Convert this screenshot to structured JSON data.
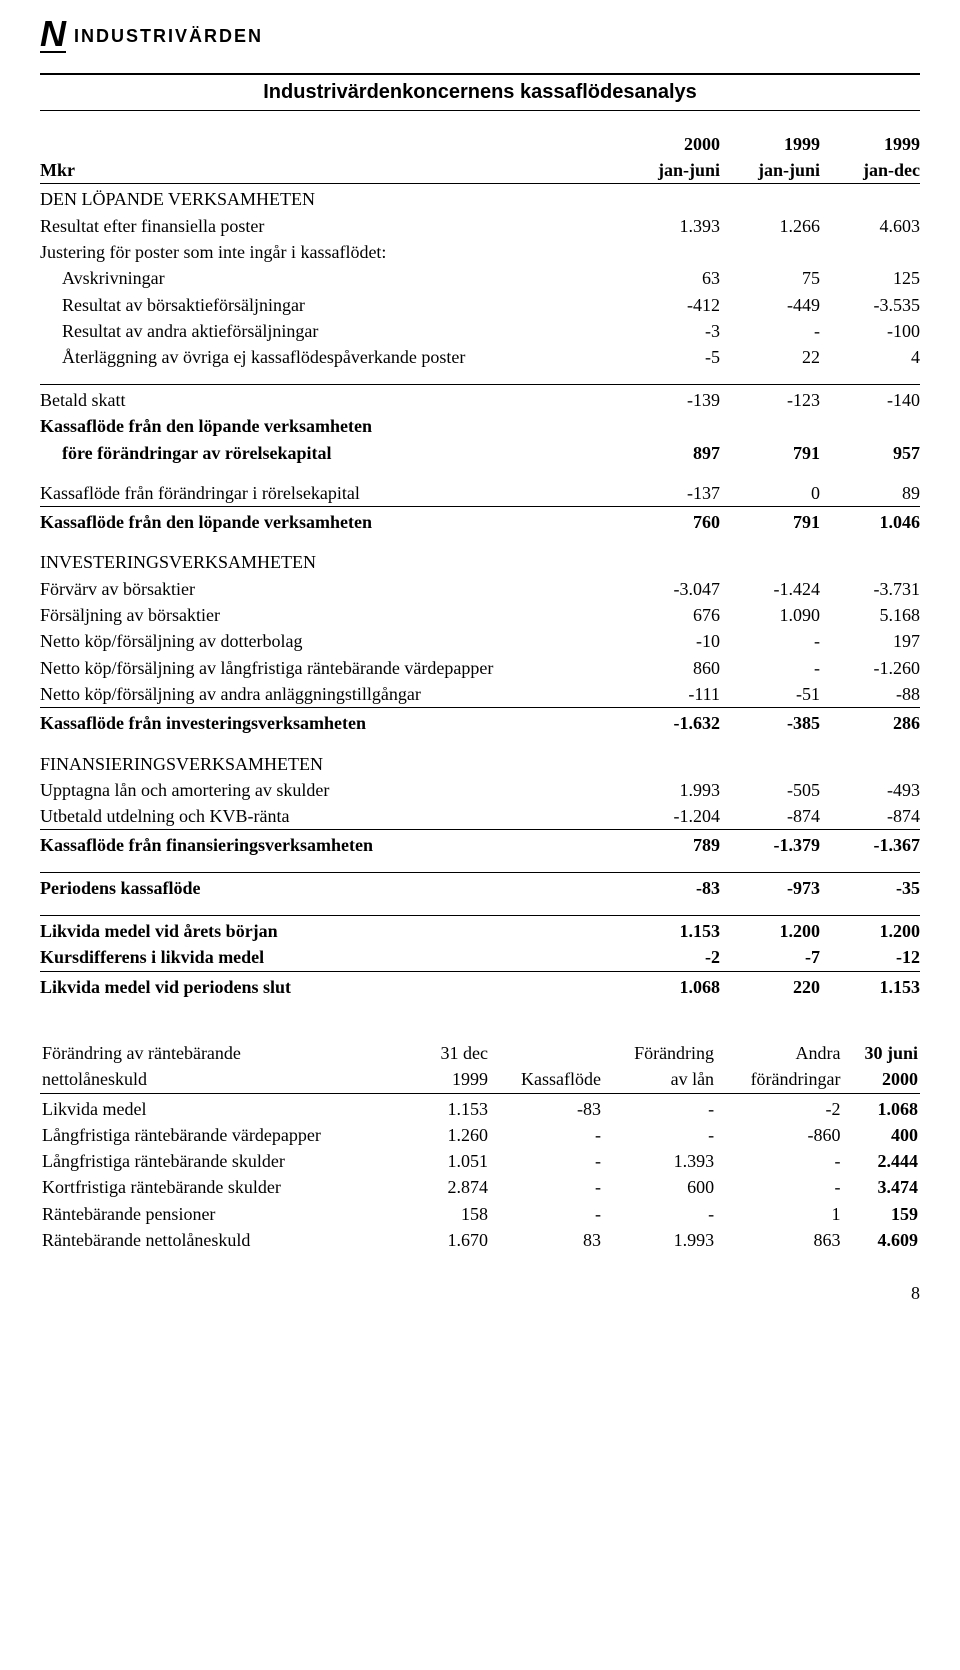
{
  "logo": {
    "symbol": "N",
    "name": "INDUSTRIVÄRDEN"
  },
  "title": "Industrivärdenkoncernens kassaflödesanalys",
  "page_number": "8",
  "table1": {
    "header": {
      "unit": "Mkr",
      "c1t": "2000",
      "c1b": "jan-juni",
      "c2t": "1999",
      "c2b": "jan-juni",
      "c3t": "1999",
      "c3b": "jan-dec"
    },
    "rows": [
      {
        "type": "section",
        "label": "DEN LÖPANDE VERKSAMHETEN"
      },
      {
        "label": "Resultat efter finansiella poster",
        "v": [
          "1.393",
          "1.266",
          "4.603"
        ]
      },
      {
        "label": "Justering för poster som inte ingår i kassaflödet:"
      },
      {
        "label": "Avskrivningar",
        "indent": true,
        "v": [
          "63",
          "75",
          "125"
        ]
      },
      {
        "label": "Resultat av börsaktieförsäljningar",
        "indent": true,
        "v": [
          "-412",
          "-449",
          "-3.535"
        ]
      },
      {
        "label": "Resultat av andra aktieförsäljningar",
        "indent": true,
        "v": [
          "-3",
          "-",
          "-100"
        ]
      },
      {
        "label": "Återläggning av övriga ej kassaflödespåverkande poster",
        "indent": true,
        "v": [
          "-5",
          "22",
          "4"
        ]
      },
      {
        "type": "spacer"
      },
      {
        "label": "Betald skatt",
        "border": true,
        "v": [
          "-139",
          "-123",
          "-140"
        ]
      },
      {
        "label": "Kassaflöde från den löpande verksamheten",
        "bold": true
      },
      {
        "label": "före förändringar av rörelsekapital",
        "bold": true,
        "indent": true,
        "v": [
          "897",
          "791",
          "957"
        ]
      },
      {
        "type": "spacer"
      },
      {
        "label": "Kassaflöde från förändringar i rörelsekapital",
        "v": [
          "-137",
          "0",
          "89"
        ]
      },
      {
        "label": "Kassaflöde från den löpande verksamheten",
        "bold": true,
        "border": true,
        "v": [
          "760",
          "791",
          "1.046"
        ]
      },
      {
        "type": "spacer"
      },
      {
        "type": "section",
        "label": "INVESTERINGSVERKSAMHETEN"
      },
      {
        "label": "Förvärv av börsaktier",
        "v": [
          "-3.047",
          "-1.424",
          "-3.731"
        ]
      },
      {
        "label": "Försäljning av börsaktier",
        "v": [
          "676",
          "1.090",
          "5.168"
        ]
      },
      {
        "label": "Netto köp/försäljning av dotterbolag",
        "v": [
          "-10",
          "-",
          "197"
        ]
      },
      {
        "label": "Netto köp/försäljning av långfristiga räntebärande värdepapper",
        "v": [
          "860",
          "-",
          "-1.260"
        ]
      },
      {
        "label": "Netto köp/försäljning av andra anläggningstillgångar",
        "v": [
          "-111",
          "-51",
          "-88"
        ]
      },
      {
        "label": "Kassaflöde från investeringsverksamheten",
        "bold": true,
        "border": true,
        "v": [
          "-1.632",
          "-385",
          "286"
        ]
      },
      {
        "type": "spacer"
      },
      {
        "type": "section",
        "label": "FINANSIERINGSVERKSAMHETEN"
      },
      {
        "label": "Upptagna lån och amortering av skulder",
        "v": [
          "1.993",
          "-505",
          "-493"
        ]
      },
      {
        "label": "Utbetald utdelning och KVB-ränta",
        "v": [
          "-1.204",
          "-874",
          "-874"
        ]
      },
      {
        "label": "Kassaflöde från finansieringsverksamheten",
        "bold": true,
        "border": true,
        "v": [
          "789",
          "-1.379",
          "-1.367"
        ]
      },
      {
        "type": "spacer"
      },
      {
        "label": "Periodens kassaflöde",
        "bold": true,
        "border": true,
        "v": [
          "-83",
          "-973",
          "-35"
        ]
      },
      {
        "type": "spacer"
      },
      {
        "label": "Likvida medel vid årets början",
        "bold": true,
        "border": true,
        "v": [
          "1.153",
          "1.200",
          "1.200"
        ]
      },
      {
        "label": "Kursdifferens i likvida medel",
        "bold": true,
        "v": [
          "-2",
          "-7",
          "-12"
        ]
      },
      {
        "label": "Likvida medel vid periodens slut",
        "bold": true,
        "border": true,
        "v": [
          "1.068",
          "220",
          "1.153"
        ]
      }
    ]
  },
  "table2": {
    "header": {
      "r1": {
        "c1": "Förändring av räntebärande",
        "c2": "31 dec",
        "c3": "",
        "c4": "Förändring",
        "c5": "Andra",
        "c6": "30 juni"
      },
      "r2": {
        "c1": "nettolåneskuld",
        "c2": "1999",
        "c3": "Kassaflöde",
        "c4": "av lån",
        "c5": "förändringar",
        "c6": "2000"
      }
    },
    "rows": [
      {
        "label": "Likvida medel",
        "v": [
          "1.153",
          "-83",
          "-",
          "-2",
          "1.068"
        ]
      },
      {
        "label": "Långfristiga räntebärande värdepapper",
        "v": [
          "1.260",
          "-",
          "-",
          "-860",
          "400"
        ]
      },
      {
        "label": "Långfristiga räntebärande skulder",
        "v": [
          "1.051",
          "-",
          "1.393",
          "-",
          "2.444"
        ]
      },
      {
        "label": "Kortfristiga räntebärande skulder",
        "v": [
          "2.874",
          "-",
          "600",
          "-",
          "3.474"
        ]
      },
      {
        "label": "Räntebärande pensioner",
        "v": [
          "158",
          "-",
          "-",
          "1",
          "159"
        ]
      },
      {
        "label": "Räntebärande nettolåneskuld",
        "v": [
          "1.670",
          "83",
          "1.993",
          "863",
          "4.609"
        ]
      }
    ]
  }
}
